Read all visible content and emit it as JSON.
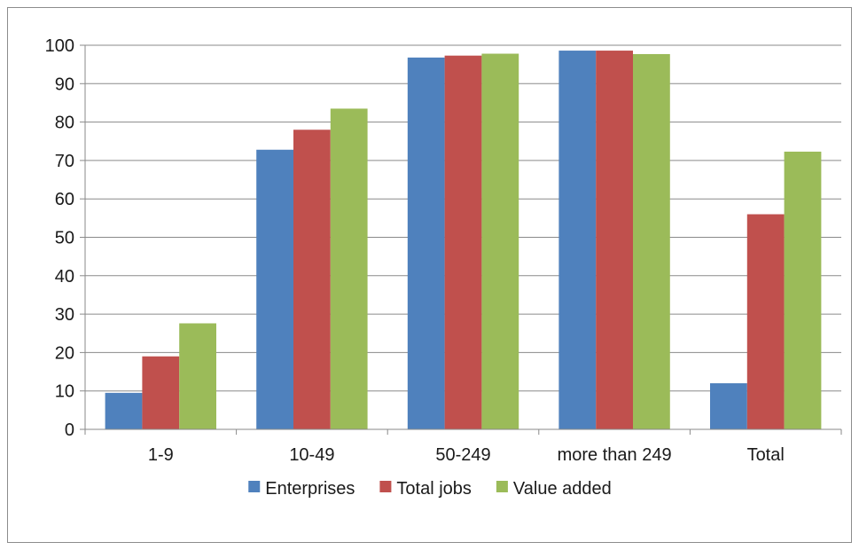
{
  "chart_data": {
    "type": "bar",
    "title": "",
    "xlabel": "",
    "ylabel": "",
    "categories": [
      "1-9",
      "10-49",
      "50-249",
      "more than 249",
      "Total"
    ],
    "series": [
      {
        "name": "Enterprises",
        "color": "#4f81bd",
        "values": [
          9.5,
          72.8,
          96.8,
          98.6,
          12.0
        ]
      },
      {
        "name": "Total jobs",
        "color": "#c0504d",
        "values": [
          19.0,
          78.0,
          97.3,
          98.6,
          56.0
        ]
      },
      {
        "name": "Value added",
        "color": "#9bbb59",
        "values": [
          27.6,
          83.5,
          97.8,
          97.7,
          72.3
        ]
      }
    ],
    "ylim": [
      0,
      100
    ],
    "yticks": [
      0,
      10,
      20,
      30,
      40,
      50,
      60,
      70,
      80,
      90,
      100
    ],
    "grid": true,
    "legend_position": "bottom"
  }
}
